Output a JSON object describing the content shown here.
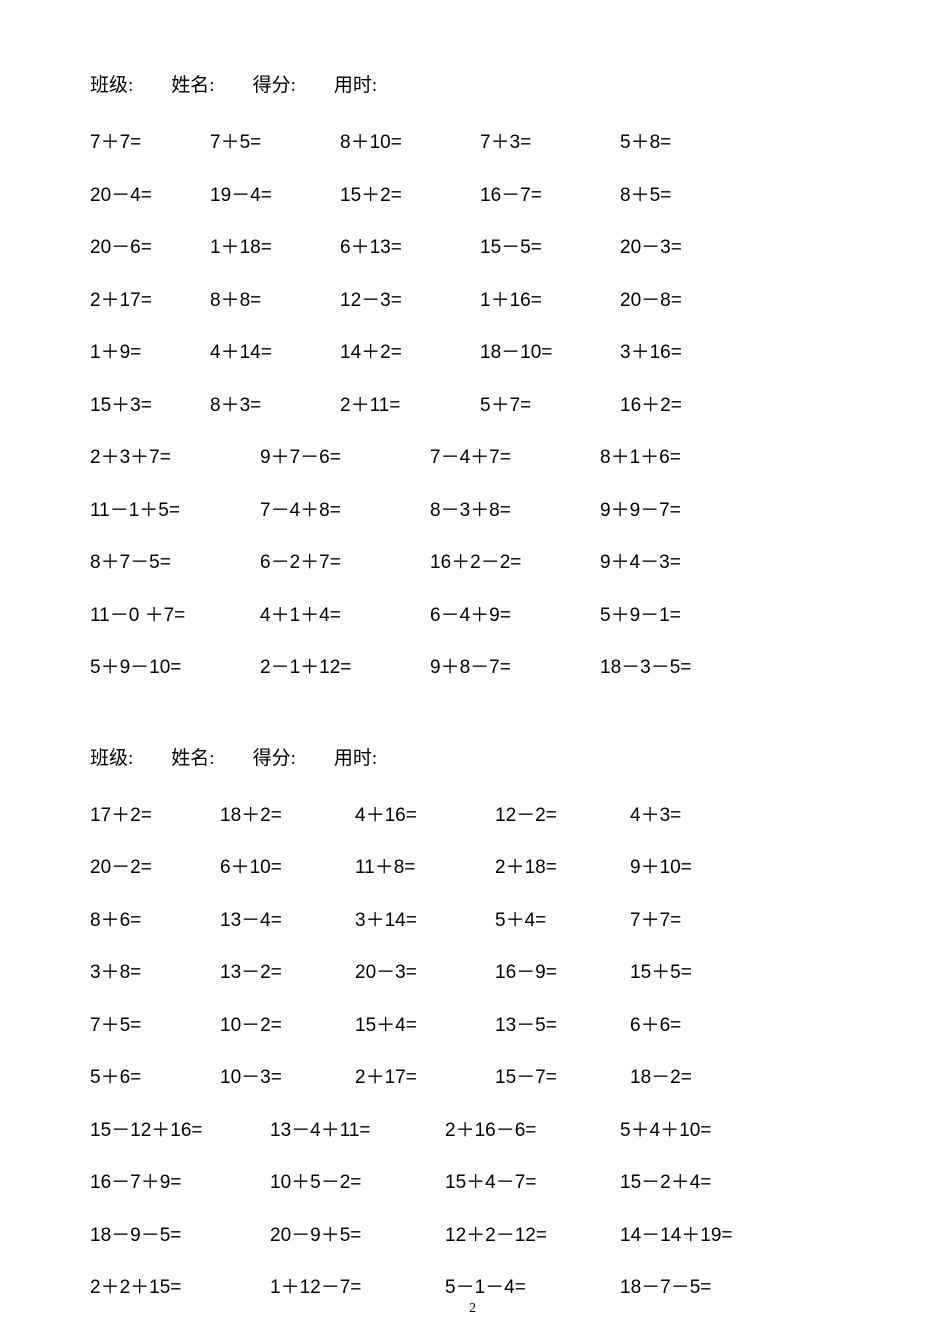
{
  "page": {
    "number": "2",
    "background_color": "#ffffff",
    "text_color": "#000000",
    "font_size_body": 19,
    "font_size_pagenum": 14
  },
  "header": {
    "class_label": "班级:",
    "name_label": "姓名:",
    "score_label": "得分:",
    "time_label": "用时:"
  },
  "section1": {
    "rows": [
      [
        "7＋7=",
        "7＋5=",
        "8＋10=",
        "7＋3=",
        "5＋8="
      ],
      [
        "20－4=",
        "19－4=",
        "15＋2=",
        "16－7=",
        "8＋5="
      ],
      [
        "20－6=",
        "1＋18=",
        "6＋13=",
        "15－5=",
        "20－3="
      ],
      [
        "2＋17=",
        "8＋8=",
        "12－3=",
        "1＋16=",
        "20－8="
      ],
      [
        "1＋9=",
        "4＋14=",
        "14＋2=",
        "18－10=",
        "3＋16="
      ],
      [
        "15＋3=",
        "8＋3=",
        "2＋11=",
        "5＋7=",
        "16＋2="
      ],
      [
        "2＋3＋7=",
        "9＋7－6=",
        "7－4＋7=",
        "8＋1＋6="
      ],
      [
        "11－1＋5=",
        "7－4＋8=",
        "8－3＋8=",
        "9＋9－7="
      ],
      [
        "8＋7－5=",
        "6－2＋7=",
        "16＋2－2=",
        "9＋4－3="
      ],
      [
        "11－0 ＋7=",
        "4＋1＋4=",
        "6－4＋9=",
        "5＋9－1="
      ],
      [
        "5＋9－10=",
        "2－1＋12=",
        "9＋8－7=",
        "18－3－5="
      ]
    ],
    "col_widths_5": [
      120,
      130,
      140,
      140,
      130
    ],
    "col_widths_4": [
      170,
      170,
      170,
      170
    ]
  },
  "section2": {
    "rows": [
      [
        "17＋2=",
        "18＋2=",
        "4＋16=",
        "12－2=",
        "4＋3="
      ],
      [
        "20－2=",
        "6＋10=",
        "11＋8=",
        "2＋18=",
        "9＋10="
      ],
      [
        "8＋6=",
        "13－4=",
        "3＋14=",
        "5＋4=",
        "7＋7="
      ],
      [
        "3＋8=",
        "13－2=",
        "20－3=",
        "16－9=",
        "15＋5="
      ],
      [
        "7＋5=",
        "10－2=",
        "15＋4=",
        "13－5=",
        "6＋6="
      ],
      [
        "5＋6=",
        "10－3=",
        "2＋17=",
        "15－7=",
        "18－2="
      ],
      [
        "15－12＋16=",
        "13－4＋11=",
        "2＋16－6=",
        "5＋4＋10="
      ],
      [
        "16－7＋9=",
        "10＋5－2=",
        "15＋4－7=",
        "15－2＋4="
      ],
      [
        "18－9－5=",
        "20－9＋5=",
        "12＋2－12=",
        "14－14＋19="
      ],
      [
        "2＋2＋15=",
        "1＋12－7=",
        "5－1－4=",
        "18－7－5="
      ]
    ],
    "col_widths_5": [
      130,
      135,
      140,
      135,
      130
    ],
    "col_widths_4": [
      180,
      175,
      175,
      180
    ]
  }
}
